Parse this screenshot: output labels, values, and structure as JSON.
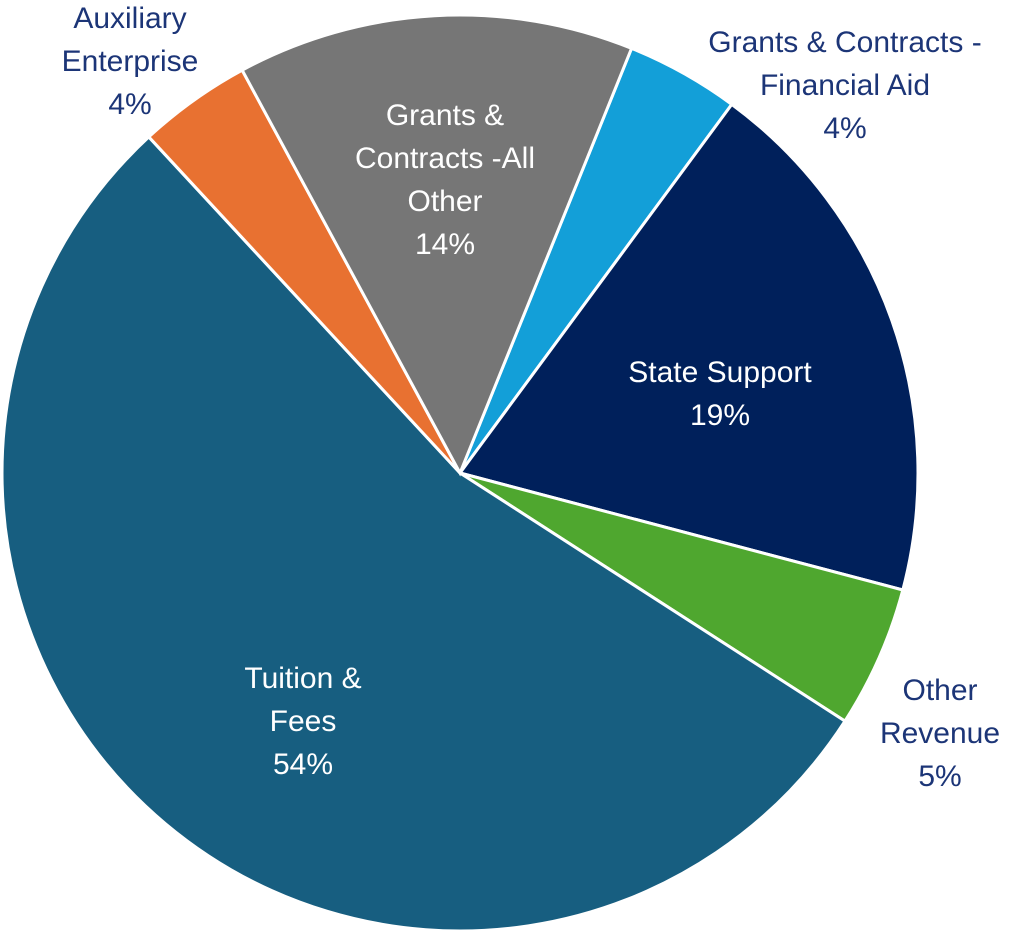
{
  "chart_data": {
    "type": "pie",
    "categories": [
      "Grants & Contracts - Financial Aid",
      "State Support",
      "Other Revenue",
      "Tuition & Fees",
      "Auxiliary Enterprise",
      "Grants & Contracts -All Other"
    ],
    "values": [
      4,
      19,
      5,
      54,
      4,
      14
    ],
    "value_labels": [
      "4%",
      "19%",
      "5%",
      "54%",
      "4%",
      "14%"
    ],
    "colors": [
      "#139fd8",
      "#00205b",
      "#4fa72f",
      "#175e80",
      "#e87131",
      "#767676"
    ]
  }
}
